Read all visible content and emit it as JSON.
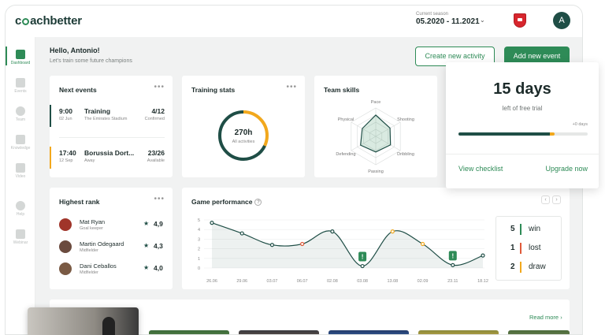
{
  "brand": {
    "logo_pre": "c",
    "logo_post": "achbetter"
  },
  "header": {
    "season_label": "Current season",
    "season_value": "05.2020 - 11.2021",
    "team_crest_icon": "arsenal-crest-icon",
    "avatar_initial": "A"
  },
  "sidebar": {
    "items": [
      {
        "label": "Dashboard",
        "icon": "dashboard-icon",
        "active": true
      },
      {
        "label": "Events",
        "icon": "calendar-icon"
      },
      {
        "label": "Team",
        "icon": "football-icon"
      },
      {
        "label": "Knowledge",
        "icon": "book-icon"
      },
      {
        "label": "Video",
        "icon": "play-icon"
      },
      {
        "label": "Help",
        "icon": "help-icon"
      },
      {
        "label": "Webinar",
        "icon": "webinar-icon"
      }
    ]
  },
  "welcome": {
    "title": "Hello, Antonio!",
    "subtitle": "Let's train some future champions"
  },
  "actions": {
    "create_activity": "Create new activity",
    "add_event": "Add new event"
  },
  "next_events": {
    "title": "Next events",
    "items": [
      {
        "time": "9:00",
        "date": "02 Jun",
        "name": "Training",
        "place": "The Emirates Stadium",
        "count": "4/12",
        "status": "Confirmed",
        "color": "#1f4e46"
      },
      {
        "time": "17:40",
        "date": "12 Sep",
        "name": "Borussia Dort...",
        "place": "Away",
        "count": "23/26",
        "status": "Available",
        "color": "#f2a81d"
      }
    ]
  },
  "training_stats": {
    "title": "Training stats",
    "value": "270h",
    "label": "All activities",
    "progress": 0.32
  },
  "team_skills": {
    "title": "Team skills",
    "axes": [
      "Pace",
      "Shooting",
      "Dribbling",
      "Passing",
      "Defending",
      "Physical"
    ],
    "values": [
      0.75,
      0.58,
      0.6,
      0.55,
      0.62,
      0.55
    ]
  },
  "trial": {
    "days": "15 days",
    "subtitle": "left of free trial",
    "label": "+0 days",
    "progress": 0.72,
    "view_checklist": "View checklist",
    "upgrade": "Upgrade now"
  },
  "highest_rank": {
    "title": "Highest rank",
    "players": [
      {
        "name": "Mat Ryan",
        "position": "Goal keeper",
        "score": "4,9",
        "color": "#a0352a"
      },
      {
        "name": "Martin Odegaard",
        "position": "Midfielder",
        "score": "4,3",
        "color": "#6b4b3e"
      },
      {
        "name": "Dani Ceballos",
        "position": "Midfielder",
        "score": "4,0",
        "color": "#7a5a44"
      }
    ]
  },
  "game_performance": {
    "title": "Game performance",
    "prev_icon": "chevron-left-icon",
    "next_icon": "chevron-right-icon"
  },
  "chart_data": {
    "type": "line",
    "x": [
      "26.06",
      "29.06",
      "03.07",
      "06.07",
      "02.08",
      "03.08",
      "13.08",
      "02.09",
      "23.11",
      "18.12"
    ],
    "series": [
      {
        "values": [
          4.7,
          3.6,
          2.4,
          2.5,
          3.8,
          0.2,
          3.8,
          2.5,
          0.3,
          1.3
        ]
      }
    ],
    "point_colors": [
      "#1f4e46",
      "#1f4e46",
      "#1f4e46",
      "#e05a3a",
      "#1f4e46",
      "#2e8b57",
      "#f2a81d",
      "#f2a81d",
      "#2e8b57",
      "#1f4e46"
    ],
    "y_ticks": [
      "0",
      "1",
      "2",
      "3",
      "4",
      "5"
    ],
    "ylim": [
      0,
      5
    ],
    "grid": true
  },
  "results": [
    {
      "count": "5",
      "label": "win",
      "color": "#2e8b57"
    },
    {
      "count": "1",
      "label": "lost",
      "color": "#e05a3a"
    },
    {
      "count": "2",
      "label": "draw",
      "color": "#f2a81d"
    }
  ],
  "read_more": "Read more"
}
